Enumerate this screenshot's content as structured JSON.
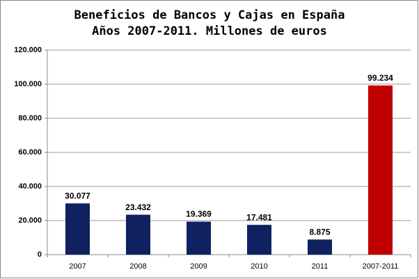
{
  "chart_data": {
    "type": "bar",
    "title": "Beneficios de Bancos y Cajas en España",
    "subtitle": "Años 2007-2011. Millones de euros",
    "categories": [
      "2007",
      "2008",
      "2009",
      "2010",
      "2011",
      "2007-2011"
    ],
    "values": [
      30077,
      23432,
      19369,
      17481,
      8875,
      99234
    ],
    "value_labels": [
      "30.077",
      "23.432",
      "19.369",
      "17.481",
      "8.875",
      "99.234"
    ],
    "colors": [
      "#0f2160",
      "#0f2160",
      "#0f2160",
      "#0f2160",
      "#0f2160",
      "#c00000"
    ],
    "ylim": [
      0,
      120000
    ],
    "yticks": [
      0,
      {
        "value": 20000,
        "label": "20.000"
      },
      {
        "value": 40000,
        "label": "40.000"
      },
      {
        "value": 60000,
        "label": "60.000"
      },
      {
        "value": 80000,
        "label": "80.000"
      },
      {
        "value": 100000,
        "label": "100.000"
      },
      {
        "value": 120000,
        "label": "120.000"
      }
    ],
    "grid": true
  }
}
